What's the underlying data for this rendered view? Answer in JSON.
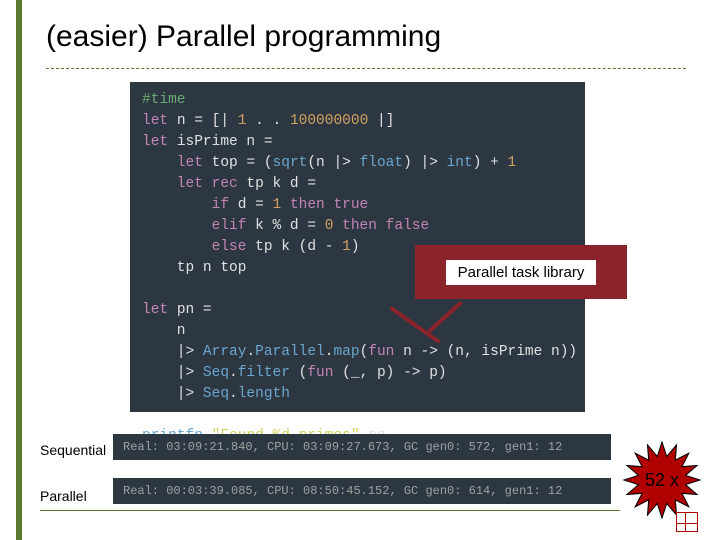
{
  "title": "(easier) Parallel programming",
  "callout_label": "Parallel task library",
  "labels": {
    "sequential": "Sequential",
    "parallel": "Parallel"
  },
  "burst_text": "52 x",
  "code": {
    "background": "#2d3742",
    "font_family": "Consolas",
    "font_size": 14.5,
    "lines": [
      [
        {
          "t": "#time",
          "c": "cm"
        }
      ],
      [
        {
          "t": "let ",
          "c": "kw"
        },
        {
          "t": "n ",
          "c": "id"
        },
        {
          "t": "= [| ",
          "c": "op"
        },
        {
          "t": "1 ",
          "c": "nm"
        },
        {
          "t": ". . ",
          "c": "op"
        },
        {
          "t": "100000000 ",
          "c": "nm"
        },
        {
          "t": "|]",
          "c": "op"
        }
      ],
      [
        {
          "t": "let ",
          "c": "kw"
        },
        {
          "t": "isPrime n ",
          "c": "id"
        },
        {
          "t": "=",
          "c": "op"
        }
      ],
      [
        {
          "t": "    let ",
          "c": "kw"
        },
        {
          "t": "top ",
          "c": "id"
        },
        {
          "t": "= (",
          "c": "op"
        },
        {
          "t": "sqrt",
          "c": "fn"
        },
        {
          "t": "(n |> ",
          "c": "op"
        },
        {
          "t": "float",
          "c": "ty"
        },
        {
          "t": ") |> ",
          "c": "op"
        },
        {
          "t": "int",
          "c": "ty"
        },
        {
          "t": ") + ",
          "c": "op"
        },
        {
          "t": "1",
          "c": "nm"
        }
      ],
      [
        {
          "t": "    let rec ",
          "c": "kw"
        },
        {
          "t": "tp k d ",
          "c": "id"
        },
        {
          "t": "=",
          "c": "op"
        }
      ],
      [
        {
          "t": "        if ",
          "c": "kw"
        },
        {
          "t": "d = ",
          "c": "id"
        },
        {
          "t": "1 ",
          "c": "nm"
        },
        {
          "t": "then true",
          "c": "kw"
        }
      ],
      [
        {
          "t": "        elif ",
          "c": "kw"
        },
        {
          "t": "k % d = ",
          "c": "id"
        },
        {
          "t": "0 ",
          "c": "nm"
        },
        {
          "t": "then false",
          "c": "kw"
        }
      ],
      [
        {
          "t": "        else ",
          "c": "kw"
        },
        {
          "t": "tp k (d - ",
          "c": "id"
        },
        {
          "t": "1",
          "c": "nm"
        },
        {
          "t": ")",
          "c": "op"
        }
      ],
      [
        {
          "t": "    tp n top",
          "c": "id"
        }
      ],
      [
        {
          "t": "",
          "c": "id"
        }
      ],
      [
        {
          "t": "let ",
          "c": "kw"
        },
        {
          "t": "pn ",
          "c": "id"
        },
        {
          "t": "=",
          "c": "op"
        }
      ],
      [
        {
          "t": "    n",
          "c": "id"
        }
      ],
      [
        {
          "t": "    |> ",
          "c": "op"
        },
        {
          "t": "Array",
          "c": "ty"
        },
        {
          "t": ".",
          "c": "op"
        },
        {
          "t": "Parallel",
          "c": "ty"
        },
        {
          "t": ".",
          "c": "op"
        },
        {
          "t": "map",
          "c": "fn"
        },
        {
          "t": "(",
          "c": "op"
        },
        {
          "t": "fun ",
          "c": "kw"
        },
        {
          "t": "n ",
          "c": "id"
        },
        {
          "t": "-> (n, isPrime n))",
          "c": "op"
        }
      ],
      [
        {
          "t": "    |> ",
          "c": "op"
        },
        {
          "t": "Seq",
          "c": "ty"
        },
        {
          "t": ".",
          "c": "op"
        },
        {
          "t": "filter ",
          "c": "fn"
        },
        {
          "t": "(",
          "c": "op"
        },
        {
          "t": "fun ",
          "c": "kw"
        },
        {
          "t": "(_, p) ",
          "c": "id"
        },
        {
          "t": "-> p)",
          "c": "op"
        }
      ],
      [
        {
          "t": "    |> ",
          "c": "op"
        },
        {
          "t": "Seq",
          "c": "ty"
        },
        {
          "t": ".",
          "c": "op"
        },
        {
          "t": "length",
          "c": "fn"
        }
      ],
      [
        {
          "t": "",
          "c": "id"
        }
      ],
      [
        {
          "t": "printfn ",
          "c": "fn"
        },
        {
          "t": "\"Found %d primes\" ",
          "c": "st"
        },
        {
          "t": "pn",
          "c": "id"
        }
      ]
    ]
  },
  "timings": {
    "sequential": "Real: 03:09:21.840, CPU: 03:09:27.673, GC gen0: 572, gen1: 12",
    "parallel": "Real: 00:03:39.085, CPU: 08:50:45.152, GC gen0: 614, gen1: 12"
  },
  "colors": {
    "accent_green": "#5a7a34",
    "callout_red": "#8a232a",
    "code_bg": "#2d3742",
    "star_fill": "#b00000"
  },
  "burst": {
    "points": 16,
    "outer_r": 38,
    "inner_r": 24,
    "fill": "#b00000",
    "stroke": "#000000"
  }
}
